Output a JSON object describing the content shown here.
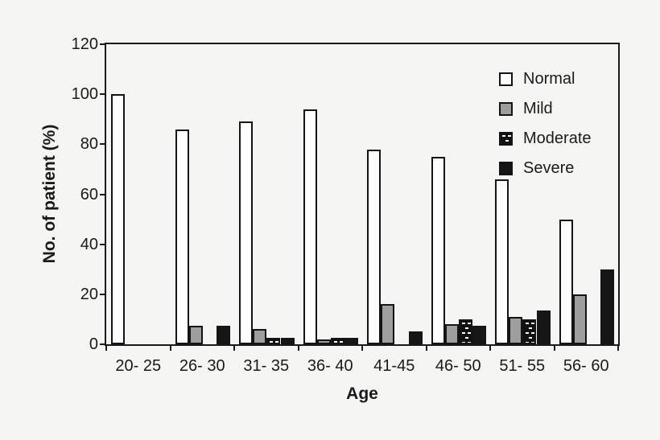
{
  "colors": {
    "background": "#f5f5f3",
    "ink": "#1a1a1a",
    "normal_fill": "#fdfdfd",
    "mild_fill": "#9e9e9e",
    "moderate_fill": "#111111",
    "severe_fill": "#161616"
  },
  "chart_data": {
    "type": "bar",
    "title": "",
    "xlabel": "Age",
    "ylabel": "No. of patient (%)",
    "ylim": [
      0,
      120
    ],
    "y_ticks": [
      0,
      20,
      40,
      60,
      80,
      100,
      120
    ],
    "grid": false,
    "legend_position": "top-right-inside",
    "categories": [
      "20- 25",
      "26- 30",
      "31- 35",
      "36- 40",
      "41-45",
      "46- 50",
      "51- 55",
      "56- 60"
    ],
    "series": [
      {
        "name": "Normal",
        "style": "outline-white",
        "values": [
          100,
          86,
          89,
          94,
          78,
          75,
          66,
          50
        ]
      },
      {
        "name": "Mild",
        "style": "solid-gray",
        "values": [
          0,
          7.5,
          6,
          2,
          16,
          8,
          11,
          20
        ]
      },
      {
        "name": "Moderate",
        "style": "speckled-black",
        "values": [
          0,
          0,
          2.5,
          2.5,
          0,
          10,
          10,
          0
        ]
      },
      {
        "name": "Severe",
        "style": "solid-black",
        "values": [
          0,
          7.5,
          2.5,
          2.5,
          5,
          7.5,
          13.5,
          30
        ]
      }
    ]
  }
}
